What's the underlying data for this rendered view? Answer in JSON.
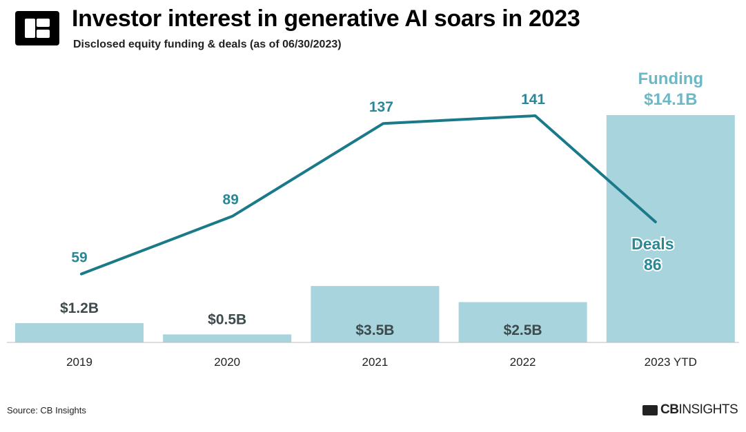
{
  "header": {
    "title": "Investor interest in generative AI soars in 2023",
    "subtitle": "Disclosed equity funding & deals (as of 06/30/2023)"
  },
  "footer": {
    "source": "Source: CB Insights",
    "brand_bold": "CB",
    "brand_rest": "INSIGHTS"
  },
  "colors": {
    "bar": "#a8d5dd",
    "line": "#1a7a8a",
    "deal_label": "#2a8797",
    "bar_label": "#3d4a4c",
    "axis": "#bbbbbb"
  },
  "chart_data": {
    "type": "bar",
    "categories": [
      "2019",
      "2020",
      "2021",
      "2022",
      "2023 YTD"
    ],
    "series": [
      {
        "name": "Funding",
        "type": "bar",
        "values": [
          1.2,
          0.5,
          3.5,
          2.5,
          14.1
        ],
        "labels": [
          "$1.2B",
          "$0.5B",
          "$3.5B",
          "$2.5B",
          "$14.1B"
        ]
      },
      {
        "name": "Deals",
        "type": "line",
        "values": [
          59,
          89,
          137,
          141,
          86
        ],
        "labels": [
          "59",
          "89",
          "137",
          "141",
          "86"
        ]
      }
    ],
    "title": "Investor interest in generative AI soars in 2023",
    "subtitle": "Disclosed equity funding & deals (as of 06/30/2023)",
    "legend": "inline"
  }
}
